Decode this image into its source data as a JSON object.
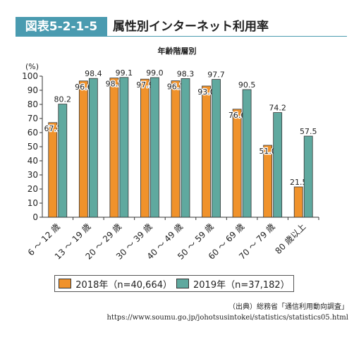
{
  "header": {
    "figure_label": "図表5-2-1-5",
    "title": "属性別インターネット利用率"
  },
  "chart_data": {
    "type": "bar",
    "title": "年齢階層別",
    "ylabel": "(%)",
    "ylim": [
      0,
      100
    ],
    "yticks": [
      0,
      10,
      20,
      30,
      40,
      50,
      60,
      70,
      80,
      90,
      100
    ],
    "categories": [
      "6 ～ 12 歳",
      "13 ～ 19 歳",
      "20 ～ 29 歳",
      "30 ～ 39 歳",
      "40 ～ 49 歳",
      "50 ～ 59 歳",
      "60 ～ 69 歳",
      "70 ～ 79 歳",
      "80 歳以上"
    ],
    "series": [
      {
        "name": "2018年（n=40,664）",
        "color": "#f0922b",
        "values": [
          67.1,
          96.6,
          98.7,
          97.9,
          96.7,
          93.0,
          76.6,
          51.0,
          21.5
        ]
      },
      {
        "name": "2019年（n=37,182）",
        "color": "#5fa99f",
        "values": [
          80.2,
          98.4,
          99.1,
          99.0,
          98.3,
          97.7,
          90.5,
          74.2,
          57.5
        ]
      }
    ],
    "grid": false,
    "legend": "bottom"
  },
  "source": {
    "line1": "（出典）総務省「通信利用動向調査」",
    "line2": "https://www.soumu.go.jp/johotsusintokei/statistics/statistics05.html"
  }
}
